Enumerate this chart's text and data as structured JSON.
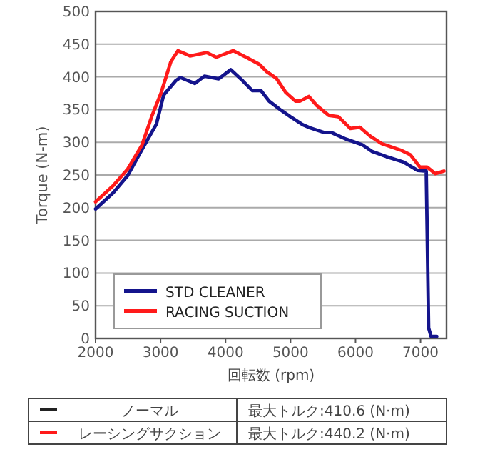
{
  "chart_data": {
    "type": "line",
    "xlabel": "回転数 (rpm)",
    "ylabel": "Torque (N-m)",
    "xlim": [
      2000,
      7400
    ],
    "xticks": [
      2000,
      3000,
      4000,
      5000,
      6000,
      7000
    ],
    "ylim": [
      0,
      500
    ],
    "yticks": [
      0,
      50,
      100,
      150,
      200,
      250,
      300,
      350,
      400,
      450,
      500
    ],
    "grid": "y",
    "legend": "bottom left",
    "marker": "none",
    "line_style": "solid",
    "series": [
      {
        "name": "STD CLEANER",
        "color": "#14148c",
        "x": [
          2000,
          2273,
          2494,
          2715,
          2937,
          3047,
          3232,
          3305,
          3527,
          3675,
          3895,
          4080,
          4264,
          4412,
          4545,
          4670,
          4854,
          5000,
          5186,
          5300,
          5518,
          5628,
          5850,
          6108,
          6255,
          6476,
          6735,
          6956,
          7088,
          7125,
          7162,
          7250
        ],
        "values": [
          198,
          223,
          249,
          289,
          328,
          372,
          394,
          399,
          390,
          401,
          397,
          411,
          394,
          379,
          379,
          363,
          349,
          339,
          327,
          322,
          315,
          315,
          305,
          296,
          286,
          278,
          270,
          257,
          256,
          16,
          3,
          3
        ]
      },
      {
        "name": "RACING SUCTION",
        "color": "#ff1a1a",
        "x": [
          2000,
          2273,
          2494,
          2715,
          2863,
          3010,
          3158,
          3268,
          3453,
          3711,
          3858,
          4117,
          4338,
          4522,
          4633,
          4780,
          4928,
          5075,
          5148,
          5282,
          5406,
          5590,
          5737,
          5922,
          6068,
          6217,
          6401,
          6696,
          6843,
          6991,
          7102,
          7228,
          7361
        ],
        "values": [
          209,
          234,
          259,
          296,
          339,
          376,
          423,
          440,
          432,
          437,
          430,
          440,
          429,
          419,
          408,
          398,
          376,
          363,
          363,
          370,
          356,
          341,
          339,
          321,
          323,
          310,
          298,
          288,
          281,
          262,
          262,
          252,
          256
        ]
      }
    ],
    "annotations": [
      "ノーマル",
      "最大トルク:410.6 (N·m)",
      "レーシングサクション",
      "最大トルク:440.2 (N·m)"
    ]
  }
}
